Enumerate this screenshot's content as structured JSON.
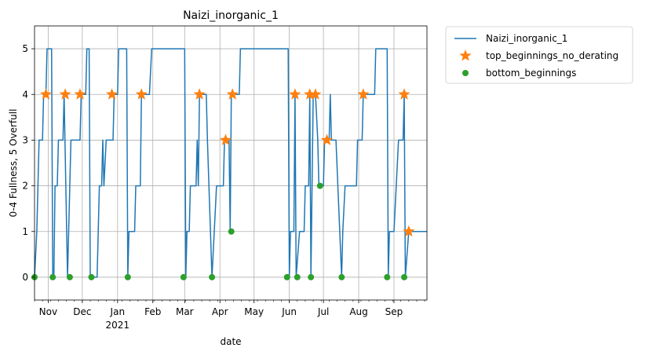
{
  "chart_data": {
    "type": "line",
    "title": "Naizi_inorganic_1",
    "xlabel": "date",
    "ylabel": "0-4 Fullness, 5 Overfull",
    "xlim": [
      "2020-10-20",
      "2021-09-30"
    ],
    "ylim": [
      -0.5,
      5.5
    ],
    "grid": true,
    "legend_position": "outside-top-right",
    "x_ticks": [
      {
        "date": "2020-11-01",
        "label": "Nov",
        "sublabel": ""
      },
      {
        "date": "2020-12-01",
        "label": "Dec",
        "sublabel": ""
      },
      {
        "date": "2021-01-01",
        "label": "Jan",
        "sublabel": "2021"
      },
      {
        "date": "2021-02-01",
        "label": "Feb",
        "sublabel": ""
      },
      {
        "date": "2021-03-01",
        "label": "Mar",
        "sublabel": ""
      },
      {
        "date": "2021-04-01",
        "label": "Apr",
        "sublabel": ""
      },
      {
        "date": "2021-05-01",
        "label": "May",
        "sublabel": ""
      },
      {
        "date": "2021-06-01",
        "label": "Jun",
        "sublabel": ""
      },
      {
        "date": "2021-07-01",
        "label": "Jul",
        "sublabel": ""
      },
      {
        "date": "2021-08-01",
        "label": "Aug",
        "sublabel": ""
      },
      {
        "date": "2021-09-01",
        "label": "Sep",
        "sublabel": ""
      }
    ],
    "y_ticks": [
      "0",
      "1",
      "2",
      "3",
      "4",
      "5"
    ],
    "series": [
      {
        "name": "Naizi_inorganic_1",
        "kind": "line",
        "color": "#1f77b4",
        "points": [
          [
            "2020-10-20",
            0
          ],
          [
            "2020-10-22",
            1
          ],
          [
            "2020-10-24",
            3
          ],
          [
            "2020-10-27",
            3
          ],
          [
            "2020-10-28",
            4
          ],
          [
            "2020-10-30",
            4
          ],
          [
            "2020-10-31",
            5
          ],
          [
            "2020-11-04",
            5
          ],
          [
            "2020-11-05",
            0
          ],
          [
            "2020-11-06",
            0
          ],
          [
            "2020-11-07",
            2
          ],
          [
            "2020-11-09",
            2
          ],
          [
            "2020-11-10",
            3
          ],
          [
            "2020-11-14",
            3
          ],
          [
            "2020-11-15",
            4
          ],
          [
            "2020-11-18",
            0
          ],
          [
            "2020-11-20",
            2
          ],
          [
            "2020-11-21",
            3
          ],
          [
            "2020-11-29",
            3
          ],
          [
            "2020-11-30",
            4
          ],
          [
            "2020-12-04",
            4
          ],
          [
            "2020-12-05",
            5
          ],
          [
            "2020-12-07",
            5
          ],
          [
            "2020-12-08",
            0
          ],
          [
            "2020-12-14",
            0
          ],
          [
            "2020-12-16",
            2
          ],
          [
            "2020-12-18",
            2
          ],
          [
            "2020-12-19",
            3
          ],
          [
            "2020-12-20",
            2
          ],
          [
            "2020-12-22",
            3
          ],
          [
            "2020-12-28",
            3
          ],
          [
            "2020-12-29",
            4
          ],
          [
            "2021-01-01",
            4
          ],
          [
            "2021-01-02",
            5
          ],
          [
            "2021-01-09",
            5
          ],
          [
            "2021-01-10",
            0
          ],
          [
            "2021-01-11",
            1
          ],
          [
            "2021-01-16",
            1
          ],
          [
            "2021-01-17",
            2
          ],
          [
            "2021-01-21",
            2
          ],
          [
            "2021-01-22",
            4
          ],
          [
            "2021-01-29",
            4
          ],
          [
            "2021-01-31",
            5
          ],
          [
            "2021-03-01",
            5
          ],
          [
            "2021-03-02",
            0
          ],
          [
            "2021-03-03",
            1
          ],
          [
            "2021-03-05",
            1
          ],
          [
            "2021-03-06",
            2
          ],
          [
            "2021-03-11",
            2
          ],
          [
            "2021-03-12",
            3
          ],
          [
            "2021-03-13",
            2
          ],
          [
            "2021-03-14",
            4
          ],
          [
            "2021-03-20",
            4
          ],
          [
            "2021-03-21",
            3
          ],
          [
            "2021-03-25",
            0
          ],
          [
            "2021-03-27",
            1
          ],
          [
            "2021-03-29",
            2
          ],
          [
            "2021-04-04",
            2
          ],
          [
            "2021-04-05",
            3
          ],
          [
            "2021-04-09",
            3
          ],
          [
            "2021-04-10",
            1
          ],
          [
            "2021-04-11",
            4
          ],
          [
            "2021-04-18",
            4
          ],
          [
            "2021-04-19",
            5
          ],
          [
            "2021-05-31",
            5
          ],
          [
            "2021-06-01",
            0
          ],
          [
            "2021-06-02",
            1
          ],
          [
            "2021-06-05",
            1
          ],
          [
            "2021-06-06",
            4
          ],
          [
            "2021-06-07",
            0
          ],
          [
            "2021-06-10",
            1
          ],
          [
            "2021-06-14",
            1
          ],
          [
            "2021-06-15",
            2
          ],
          [
            "2021-06-18",
            2
          ],
          [
            "2021-06-19",
            4
          ],
          [
            "2021-06-20",
            0
          ],
          [
            "2021-06-22",
            4
          ],
          [
            "2021-06-24",
            4
          ],
          [
            "2021-06-26",
            3
          ],
          [
            "2021-06-27",
            2
          ],
          [
            "2021-07-01",
            2
          ],
          [
            "2021-07-02",
            3
          ],
          [
            "2021-07-04",
            3
          ],
          [
            "2021-07-06",
            3
          ],
          [
            "2021-07-07",
            4
          ],
          [
            "2021-07-08",
            3
          ],
          [
            "2021-07-12",
            3
          ],
          [
            "2021-07-17",
            0
          ],
          [
            "2021-07-18",
            1
          ],
          [
            "2021-07-20",
            2
          ],
          [
            "2021-07-30",
            2
          ],
          [
            "2021-07-31",
            3
          ],
          [
            "2021-08-04",
            3
          ],
          [
            "2021-08-05",
            4
          ],
          [
            "2021-08-15",
            4
          ],
          [
            "2021-08-16",
            5
          ],
          [
            "2021-08-26",
            5
          ],
          [
            "2021-08-27",
            0
          ],
          [
            "2021-08-28",
            1
          ],
          [
            "2021-09-01",
            1
          ],
          [
            "2021-09-03",
            2
          ],
          [
            "2021-09-05",
            3
          ],
          [
            "2021-09-09",
            3
          ],
          [
            "2021-09-10",
            4
          ],
          [
            "2021-09-11",
            0
          ],
          [
            "2021-09-14",
            1
          ],
          [
            "2021-09-30",
            1
          ]
        ]
      },
      {
        "name": "top_beginnings_no_derating",
        "kind": "star",
        "color": "#ff7f0e",
        "points": [
          [
            "2020-10-30",
            4
          ],
          [
            "2020-11-16",
            4
          ],
          [
            "2020-11-29",
            4
          ],
          [
            "2020-12-27",
            4
          ],
          [
            "2021-01-22",
            4
          ],
          [
            "2021-03-14",
            4
          ],
          [
            "2021-04-06",
            3
          ],
          [
            "2021-04-12",
            4
          ],
          [
            "2021-06-06",
            4
          ],
          [
            "2021-06-19",
            4
          ],
          [
            "2021-06-24",
            4
          ],
          [
            "2021-07-04",
            3
          ],
          [
            "2021-08-05",
            4
          ],
          [
            "2021-09-10",
            4
          ],
          [
            "2021-09-14",
            1
          ]
        ]
      },
      {
        "name": "bottom_beginnings",
        "kind": "dot",
        "color": "#2ca02c",
        "points": [
          [
            "2020-10-20",
            0
          ],
          [
            "2020-11-05",
            0
          ],
          [
            "2020-11-20",
            0
          ],
          [
            "2020-12-09",
            0
          ],
          [
            "2021-01-10",
            0
          ],
          [
            "2021-02-28",
            0
          ],
          [
            "2021-03-25",
            0
          ],
          [
            "2021-04-11",
            1
          ],
          [
            "2021-05-30",
            0
          ],
          [
            "2021-06-08",
            0
          ],
          [
            "2021-06-20",
            0
          ],
          [
            "2021-06-28",
            2
          ],
          [
            "2021-07-17",
            0
          ],
          [
            "2021-08-26",
            0
          ],
          [
            "2021-09-10",
            0
          ]
        ]
      }
    ]
  }
}
